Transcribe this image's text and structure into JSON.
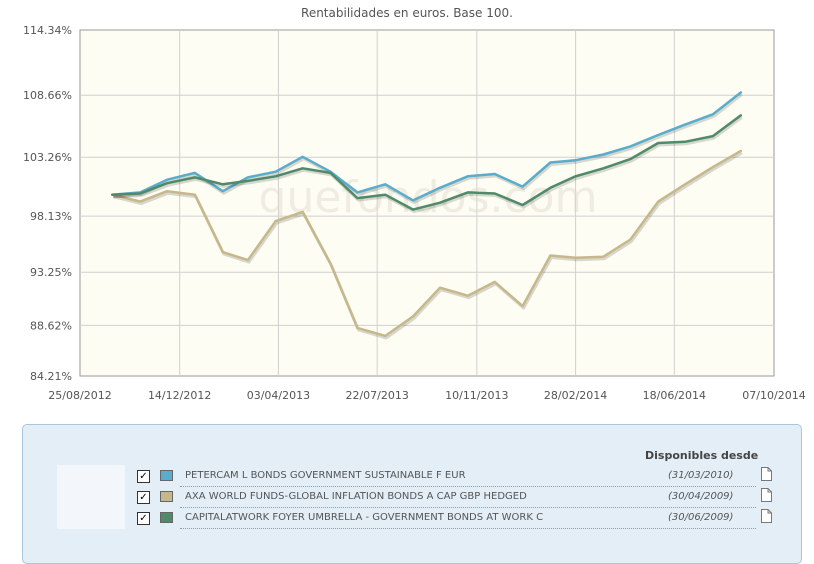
{
  "chart_data": {
    "type": "line",
    "title": "Rentabilidades en euros. Base 100.",
    "x_ticks": [
      "25/08/2012",
      "14/12/2012",
      "03/04/2013",
      "22/07/2013",
      "10/11/2013",
      "28/02/2014",
      "18/06/2014",
      "07/10/2014"
    ],
    "y_ticks": [
      "84.21%",
      "88.62%",
      "93.25%",
      "98.13%",
      "103.26%",
      "108.66%",
      "114.34%"
    ],
    "x": [
      "2012-09-30",
      "2012-10-31",
      "2012-11-30",
      "2012-12-31",
      "2013-01-31",
      "2013-02-28",
      "2013-03-31",
      "2013-04-30",
      "2013-05-31",
      "2013-06-30",
      "2013-07-31",
      "2013-08-31",
      "2013-09-30",
      "2013-10-31",
      "2013-11-30",
      "2013-12-31",
      "2014-01-31",
      "2014-02-28",
      "2014-03-31",
      "2014-04-30",
      "2014-05-31",
      "2014-06-30",
      "2014-07-31",
      "2014-08-31",
      "2014-09-30"
    ],
    "xlim": [
      "2012-08-25",
      "2014-10-07"
    ],
    "ylim": [
      84.21,
      114.34
    ],
    "grid": true,
    "series": [
      {
        "name": "PETERCAM L BONDS GOVERNMENT SUSTAINABLE F EUR",
        "color": "#5aaccc",
        "values": [
          100.0,
          100.2,
          101.3,
          101.9,
          100.3,
          101.5,
          102.0,
          103.3,
          102.0,
          100.2,
          100.9,
          99.5,
          100.6,
          101.6,
          101.8,
          100.7,
          102.8,
          103.0,
          103.5,
          104.2,
          105.2,
          106.1,
          107.0,
          108.9,
          null
        ]
      },
      {
        "name": "AXA WORLD FUNDS-GLOBAL INFLATION BONDS A CAP GBP HEDGED",
        "color": "#c6b88b",
        "values": [
          100.0,
          99.4,
          100.3,
          100.0,
          95.0,
          94.3,
          97.7,
          98.5,
          94.0,
          88.4,
          87.7,
          89.4,
          91.9,
          91.2,
          92.4,
          90.3,
          94.7,
          94.5,
          94.6,
          96.1,
          99.4,
          100.9,
          102.4,
          103.8,
          null
        ]
      },
      {
        "name": "CAPITALATWORK FOYER UMBRELLA - GOVERNMENT BONDS AT WORK C",
        "color": "#4f8a69",
        "values": [
          100.0,
          100.1,
          101.0,
          101.5,
          100.9,
          101.2,
          101.6,
          102.3,
          101.9,
          99.7,
          100.0,
          98.7,
          99.3,
          100.2,
          100.1,
          99.1,
          100.6,
          101.6,
          102.3,
          103.1,
          104.5,
          104.6,
          105.1,
          106.9,
          null
        ]
      }
    ]
  },
  "legend": {
    "header": "Disponibles desde",
    "rows": [
      {
        "check": "✓",
        "name": "PETERCAM L BONDS GOVERNMENT SUSTAINABLE F EUR",
        "date": "(31/03/2010)",
        "color": "#5aaccc"
      },
      {
        "check": "✓",
        "name": "AXA WORLD FUNDS-GLOBAL INFLATION BONDS A CAP GBP HEDGED",
        "date": "(30/04/2009)",
        "color": "#c6b88b"
      },
      {
        "check": "✓",
        "name": "CAPITALATWORK FOYER UMBRELLA - GOVERNMENT BONDS AT WORK C",
        "date": "(30/06/2009)",
        "color": "#4f8a69"
      }
    ]
  },
  "watermark": "quefondos.com",
  "colors": {
    "plot_bg": "#fefdf3",
    "grid": "#d0d0d0",
    "panel_bg": "#e3eef7",
    "panel_border": "#a9c6dc"
  }
}
